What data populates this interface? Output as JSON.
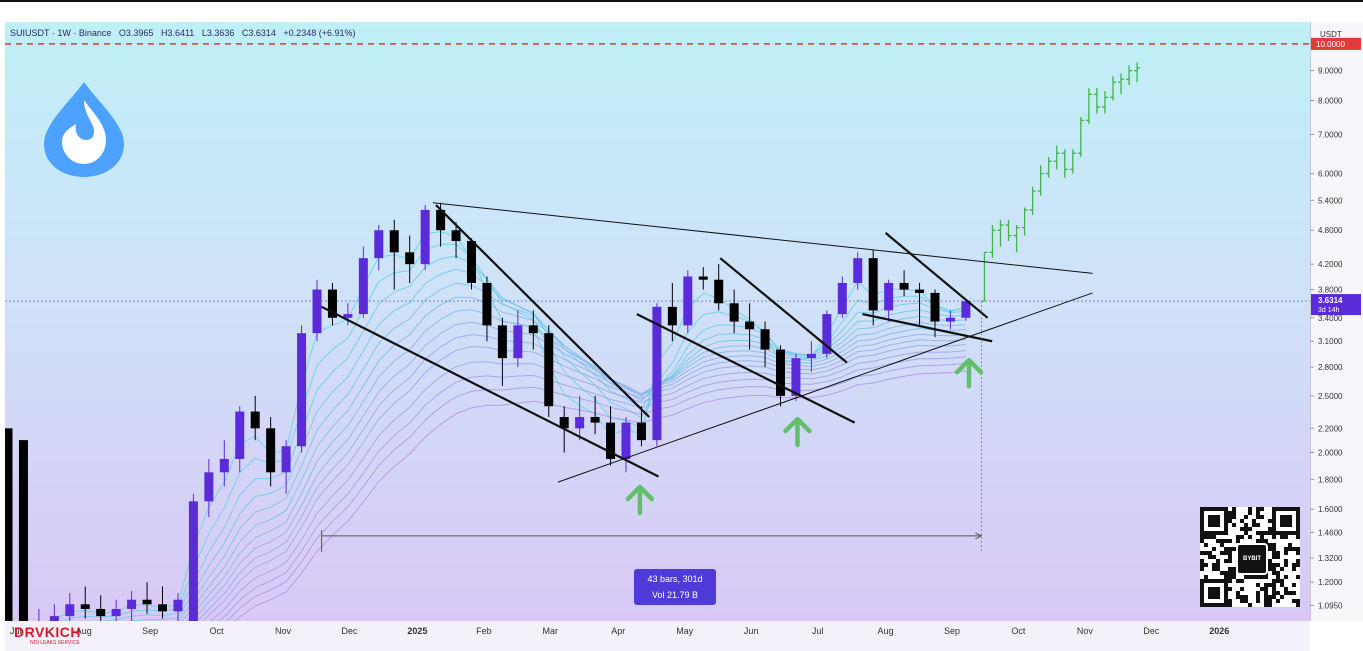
{
  "header": {
    "symbol": "SUIUSDT · 1W · Binance",
    "open": "O3.3965",
    "high": "H3.6411",
    "low": "L3.3636",
    "close": "C3.6314",
    "change": "+0.2348 (+6.91%)"
  },
  "price_scale": {
    "currency": "USDT",
    "red_level": "10.0000",
    "current_price": "3.6314",
    "countdown": "3d 14h"
  },
  "measure": {
    "bars": "43 bars, 301d",
    "volume": "Vol 21.79 B"
  },
  "brand": {
    "name": "DRVKICH",
    "tagline": "NOI LEAKS SERVICE",
    "qr_label": "BYBIT"
  },
  "colors": {
    "up": "#5b2bd9",
    "down": "#000000",
    "projection": "#3fb54a",
    "arrow": "#5fbf6a",
    "red_line": "#e03a3a",
    "ribbon_top": "#5ad7ea",
    "ribbon_bottom": "#b392e8"
  },
  "chart_data": {
    "type": "candlestick",
    "scale": "log",
    "ylim": [
      1.03,
      10.9
    ],
    "y_ticks": [
      1.095,
      1.2,
      1.32,
      1.46,
      1.6,
      1.8,
      2.0,
      2.2,
      2.5,
      2.8,
      3.1,
      3.4,
      3.8,
      4.2,
      4.8,
      5.4,
      6.0,
      7.0,
      8.0,
      9.0,
      10.0
    ],
    "y_tick_labels": [
      "1.0950",
      "1.2000",
      "1.3200",
      "1.4600",
      "1.6000",
      "1.8000",
      "2.0000",
      "2.2000",
      "2.5000",
      "2.8000",
      "3.1000",
      "3.4000",
      "3.8000",
      "4.2000",
      "4.8000",
      "5.4000",
      "6.0000",
      "7.0000",
      "8.0000",
      "9.0000",
      "10.0000"
    ],
    "x_ticks": [
      "Jul",
      "Aug",
      "Sep",
      "Oct",
      "Nov",
      "Dec",
      "2025",
      "Feb",
      "Mar",
      "Apr",
      "May",
      "Jun",
      "Jul",
      "Aug",
      "Sep",
      "Oct",
      "Nov",
      "Dec",
      "2026"
    ],
    "x_tick_positions": [
      0.5,
      4.9,
      9.2,
      13.5,
      17.8,
      22.1,
      26.5,
      30.8,
      35.1,
      39.5,
      43.8,
      48.1,
      52.4,
      56.8,
      61.1,
      65.4,
      69.7,
      74.0,
      78.4
    ],
    "candles": [
      [
        2.2,
        2.2,
        1.02,
        1.02
      ],
      [
        2.1,
        2.1,
        1.02,
        1.02
      ],
      [
        1.0,
        1.08,
        0.93,
        1.02
      ],
      [
        1.02,
        1.1,
        0.97,
        1.05
      ],
      [
        1.05,
        1.15,
        1.0,
        1.1
      ],
      [
        1.1,
        1.18,
        1.04,
        1.08
      ],
      [
        1.08,
        1.14,
        1.0,
        1.05
      ],
      [
        1.05,
        1.12,
        1.0,
        1.08
      ],
      [
        1.08,
        1.16,
        1.03,
        1.12
      ],
      [
        1.12,
        1.2,
        1.06,
        1.1
      ],
      [
        1.1,
        1.18,
        1.04,
        1.07
      ],
      [
        1.07,
        1.15,
        1.02,
        1.12
      ],
      [
        1.0,
        1.7,
        0.98,
        1.65
      ],
      [
        1.65,
        1.95,
        1.55,
        1.85
      ],
      [
        1.85,
        2.1,
        1.75,
        1.95
      ],
      [
        1.95,
        2.4,
        1.85,
        2.35
      ],
      [
        2.35,
        2.5,
        2.1,
        2.2
      ],
      [
        2.2,
        2.3,
        1.75,
        1.85
      ],
      [
        1.85,
        2.1,
        1.7,
        2.05
      ],
      [
        2.05,
        3.3,
        2.0,
        3.2
      ],
      [
        3.2,
        3.95,
        3.1,
        3.8
      ],
      [
        3.8,
        3.9,
        3.3,
        3.4
      ],
      [
        3.4,
        3.6,
        3.3,
        3.45
      ],
      [
        3.45,
        4.5,
        3.4,
        4.3
      ],
      [
        4.3,
        4.9,
        4.1,
        4.8
      ],
      [
        4.8,
        5.0,
        3.8,
        4.4
      ],
      [
        4.4,
        4.7,
        3.9,
        4.2
      ],
      [
        4.2,
        5.3,
        4.1,
        5.2
      ],
      [
        5.2,
        5.35,
        4.5,
        4.8
      ],
      [
        4.8,
        4.95,
        4.3,
        4.6
      ],
      [
        4.6,
        4.65,
        3.8,
        3.9
      ],
      [
        3.9,
        4.0,
        3.1,
        3.3
      ],
      [
        3.3,
        3.4,
        2.6,
        2.9
      ],
      [
        2.9,
        3.5,
        2.8,
        3.3
      ],
      [
        3.3,
        3.5,
        3.0,
        3.2
      ],
      [
        3.2,
        3.3,
        2.3,
        2.4
      ],
      [
        2.3,
        2.4,
        2.0,
        2.2
      ],
      [
        2.2,
        2.5,
        2.1,
        2.3
      ],
      [
        2.3,
        2.5,
        2.15,
        2.25
      ],
      [
        2.25,
        2.4,
        1.9,
        1.95
      ],
      [
        1.95,
        2.3,
        1.85,
        2.25
      ],
      [
        2.25,
        2.4,
        2.05,
        2.1
      ],
      [
        2.1,
        3.6,
        2.05,
        3.55
      ],
      [
        3.55,
        3.9,
        3.1,
        3.3
      ],
      [
        3.3,
        4.1,
        3.2,
        4.0
      ],
      [
        4.0,
        4.15,
        3.8,
        3.95
      ],
      [
        3.95,
        4.2,
        3.5,
        3.6
      ],
      [
        3.6,
        3.8,
        3.2,
        3.35
      ],
      [
        3.35,
        3.6,
        3.0,
        3.25
      ],
      [
        3.25,
        3.35,
        2.8,
        3.0
      ],
      [
        3.0,
        3.05,
        2.4,
        2.5
      ],
      [
        2.5,
        2.95,
        2.45,
        2.9
      ],
      [
        2.9,
        3.1,
        2.75,
        2.95
      ],
      [
        2.95,
        3.5,
        2.9,
        3.45
      ],
      [
        3.45,
        4.0,
        3.4,
        3.9
      ],
      [
        3.9,
        4.4,
        3.8,
        4.3
      ],
      [
        4.3,
        4.45,
        3.3,
        3.5
      ],
      [
        3.5,
        3.95,
        3.35,
        3.9
      ],
      [
        3.9,
        4.1,
        3.7,
        3.8
      ],
      [
        3.8,
        3.9,
        3.3,
        3.75
      ],
      [
        3.75,
        3.8,
        3.15,
        3.35
      ],
      [
        3.35,
        3.5,
        3.25,
        3.4
      ],
      [
        3.4,
        3.64,
        3.36,
        3.63
      ]
    ],
    "projection_start_index": 63,
    "projection_ohlc": [
      [
        3.63,
        4.4,
        3.63,
        4.4
      ],
      [
        4.4,
        4.9,
        4.3,
        4.8
      ],
      [
        4.8,
        5.0,
        4.5,
        4.9
      ],
      [
        4.9,
        5.0,
        4.6,
        4.7
      ],
      [
        4.7,
        4.9,
        4.4,
        4.85
      ],
      [
        4.85,
        5.25,
        4.7,
        5.2
      ],
      [
        5.2,
        5.7,
        5.1,
        5.6
      ],
      [
        5.6,
        6.2,
        5.5,
        6.0
      ],
      [
        6.0,
        6.4,
        5.9,
        6.3
      ],
      [
        6.3,
        6.7,
        6.1,
        6.5
      ],
      [
        6.5,
        6.6,
        5.9,
        6.1
      ],
      [
        6.1,
        6.6,
        6.0,
        6.5
      ],
      [
        6.5,
        7.5,
        6.4,
        7.4
      ],
      [
        7.4,
        8.4,
        7.3,
        8.2
      ],
      [
        8.2,
        8.4,
        7.6,
        7.8
      ],
      [
        7.8,
        8.3,
        7.6,
        8.1
      ],
      [
        8.1,
        8.8,
        8.0,
        8.6
      ],
      [
        8.6,
        8.9,
        8.2,
        8.7
      ],
      [
        8.7,
        9.2,
        8.5,
        9.0
      ],
      [
        9.0,
        9.3,
        8.6,
        9.1
      ]
    ],
    "trendlines": [
      {
        "from": [
          27.5,
          5.35
        ],
        "to": [
          70.2,
          4.05
        ]
      },
      {
        "from": [
          27.7,
          5.3
        ],
        "to": [
          41.5,
          2.3
        ]
      },
      {
        "from": [
          20.3,
          3.55
        ],
        "to": [
          42.1,
          1.82
        ]
      },
      {
        "from": [
          35.6,
          1.78
        ],
        "to": [
          70.2,
          3.75
        ]
      },
      {
        "from": [
          40.7,
          3.45
        ],
        "to": [
          54.8,
          2.25
        ]
      },
      {
        "from": [
          46.1,
          4.3
        ],
        "to": [
          54.3,
          2.85
        ]
      },
      {
        "from": [
          56.8,
          4.75
        ],
        "to": [
          63.4,
          3.4
        ]
      },
      {
        "from": [
          55.3,
          3.45
        ],
        "to": [
          63.7,
          3.1
        ]
      }
    ],
    "arrows": [
      {
        "x": 40.9,
        "price": 1.76
      },
      {
        "x": 51.1,
        "price": 2.3
      },
      {
        "x": 62.2,
        "price": 2.9
      }
    ],
    "measure_range": {
      "from": 20.3,
      "to": 63.0,
      "price": 1.44
    }
  }
}
